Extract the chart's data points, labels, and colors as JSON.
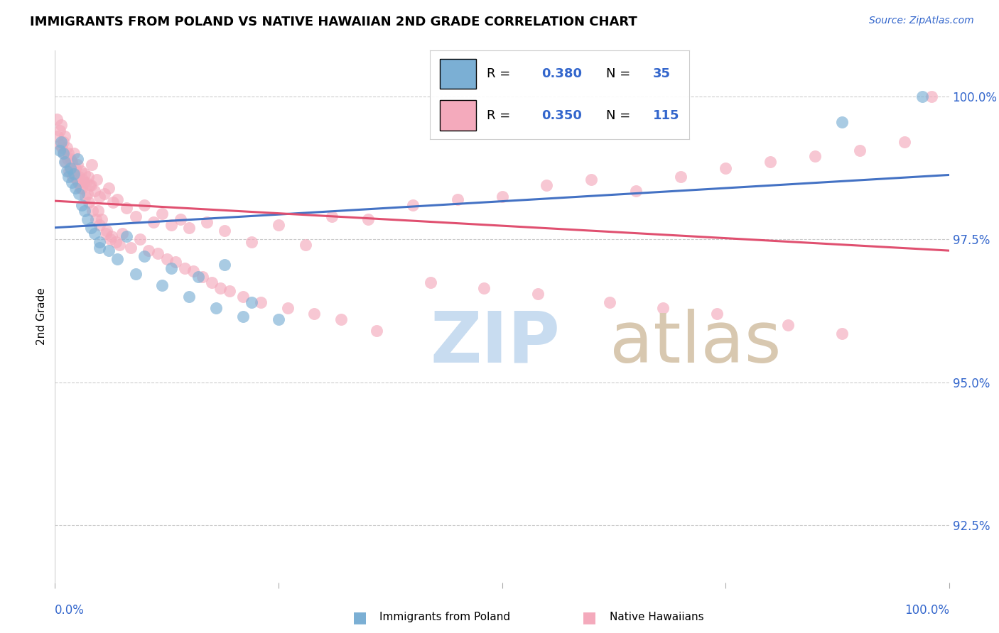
{
  "title": "IMMIGRANTS FROM POLAND VS NATIVE HAWAIIAN 2ND GRADE CORRELATION CHART",
  "source": "Source: ZipAtlas.com",
  "ylabel": "2nd Grade",
  "yticks": [
    92.5,
    95.0,
    97.5,
    100.0
  ],
  "ytick_labels": [
    "92.5%",
    "95.0%",
    "97.5%",
    "100.0%"
  ],
  "xlim": [
    0.0,
    1.0
  ],
  "ylim": [
    91.5,
    100.8
  ],
  "color_blue": "#7BAFD4",
  "color_pink": "#F4AABC",
  "color_trendline_blue": "#4472C4",
  "color_trendline_pink": "#E05070",
  "color_axis_labels": "#3366CC",
  "watermark_zip_color": "#C8DCF0",
  "watermark_atlas_color": "#D8C8B0",
  "legend_r1": "0.380",
  "legend_n1": "35",
  "legend_r2": "0.350",
  "legend_n2": "115",
  "blue_scatter_x": [
    0.005,
    0.007,
    0.009,
    0.011,
    0.013,
    0.015,
    0.017,
    0.019,
    0.021,
    0.023,
    0.025,
    0.027,
    0.03,
    0.033,
    0.036,
    0.04,
    0.044,
    0.05,
    0.06,
    0.08,
    0.1,
    0.13,
    0.16,
    0.19,
    0.22,
    0.25,
    0.05,
    0.07,
    0.09,
    0.12,
    0.15,
    0.18,
    0.21,
    0.88,
    0.97
  ],
  "blue_scatter_y": [
    99.05,
    99.2,
    99.0,
    98.85,
    98.7,
    98.6,
    98.75,
    98.5,
    98.65,
    98.4,
    98.9,
    98.3,
    98.1,
    98.0,
    97.85,
    97.7,
    97.6,
    97.45,
    97.3,
    97.55,
    97.2,
    97.0,
    96.85,
    97.05,
    96.4,
    96.1,
    97.35,
    97.15,
    96.9,
    96.7,
    96.5,
    96.3,
    96.15,
    99.55,
    100.0
  ],
  "pink_scatter_x": [
    0.002,
    0.005,
    0.007,
    0.009,
    0.011,
    0.013,
    0.015,
    0.017,
    0.019,
    0.021,
    0.023,
    0.025,
    0.027,
    0.029,
    0.031,
    0.033,
    0.035,
    0.037,
    0.039,
    0.041,
    0.044,
    0.047,
    0.05,
    0.055,
    0.06,
    0.065,
    0.07,
    0.08,
    0.09,
    0.1,
    0.11,
    0.12,
    0.13,
    0.14,
    0.15,
    0.17,
    0.19,
    0.22,
    0.25,
    0.28,
    0.31,
    0.35,
    0.4,
    0.45,
    0.5,
    0.55,
    0.6,
    0.65,
    0.7,
    0.75,
    0.8,
    0.85,
    0.9,
    0.95,
    0.98,
    0.008,
    0.012,
    0.016,
    0.02,
    0.024,
    0.028,
    0.032,
    0.036,
    0.04,
    0.048,
    0.052,
    0.058,
    0.063,
    0.068,
    0.075,
    0.085,
    0.095,
    0.105,
    0.115,
    0.125,
    0.135,
    0.145,
    0.155,
    0.165,
    0.175,
    0.185,
    0.195,
    0.21,
    0.23,
    0.26,
    0.29,
    0.32,
    0.36,
    0.42,
    0.48,
    0.54,
    0.62,
    0.68,
    0.74,
    0.82,
    0.88,
    0.003,
    0.006,
    0.01,
    0.014,
    0.018,
    0.022,
    0.026,
    0.03,
    0.034,
    0.038,
    0.042,
    0.046,
    0.05,
    0.057,
    0.062,
    0.072
  ],
  "pink_scatter_y": [
    99.6,
    99.4,
    99.5,
    99.2,
    99.3,
    99.1,
    99.0,
    98.9,
    98.85,
    99.0,
    98.75,
    98.8,
    98.6,
    98.7,
    98.55,
    98.65,
    98.5,
    98.6,
    98.45,
    98.8,
    98.35,
    98.55,
    98.25,
    98.3,
    98.4,
    98.15,
    98.2,
    98.05,
    97.9,
    98.1,
    97.8,
    97.95,
    97.75,
    97.85,
    97.7,
    97.8,
    97.65,
    97.45,
    97.75,
    97.4,
    97.9,
    97.85,
    98.1,
    98.2,
    98.25,
    98.45,
    98.55,
    98.35,
    98.6,
    98.75,
    98.85,
    98.95,
    99.05,
    99.2,
    100.0,
    99.1,
    98.85,
    98.7,
    98.6,
    98.55,
    98.4,
    98.5,
    98.3,
    98.45,
    98.0,
    97.85,
    97.65,
    97.55,
    97.45,
    97.6,
    97.35,
    97.5,
    97.3,
    97.25,
    97.15,
    97.1,
    97.0,
    96.95,
    96.85,
    96.75,
    96.65,
    96.6,
    96.5,
    96.4,
    96.3,
    96.2,
    96.1,
    95.9,
    96.75,
    96.65,
    96.55,
    96.4,
    96.3,
    96.2,
    96.0,
    95.85,
    99.3,
    99.15,
    99.0,
    98.9,
    98.75,
    98.65,
    98.5,
    98.4,
    98.25,
    98.15,
    98.0,
    97.85,
    97.75,
    97.6,
    97.5,
    97.4
  ]
}
